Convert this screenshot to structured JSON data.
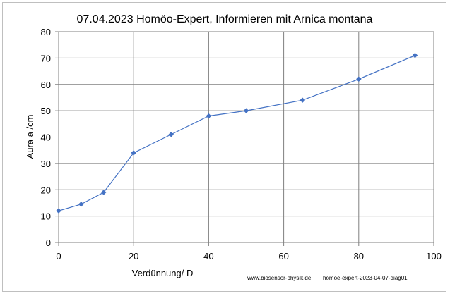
{
  "chart_data": {
    "type": "line",
    "title": "07.04.2023 Homöo-Expert, Informieren mit Arnica montana",
    "xlabel": "Verdünnung/ D",
    "ylabel": "Aura a /cm",
    "xlim": [
      0,
      100
    ],
    "ylim": [
      0,
      80
    ],
    "x_ticks": [
      0,
      20,
      40,
      60,
      80,
      100
    ],
    "y_ticks": [
      0,
      10,
      20,
      30,
      40,
      50,
      60,
      70,
      80
    ],
    "grid": true,
    "legend": "none",
    "series": [
      {
        "x": [
          0,
          6,
          12,
          20,
          30,
          40,
          50,
          65,
          80,
          95
        ],
        "values": [
          12,
          14.5,
          19,
          34,
          41,
          48,
          50,
          54,
          62,
          71
        ],
        "color": "#4472c4",
        "marker": "diamond"
      }
    ]
  },
  "footer": {
    "website": "www.biosensor-physik.de",
    "diagram_id": "homoe-expert-2023-04-07-diag01"
  },
  "colors": {
    "line": "#4472c4",
    "grid": "#808080",
    "axis": "#808080"
  }
}
